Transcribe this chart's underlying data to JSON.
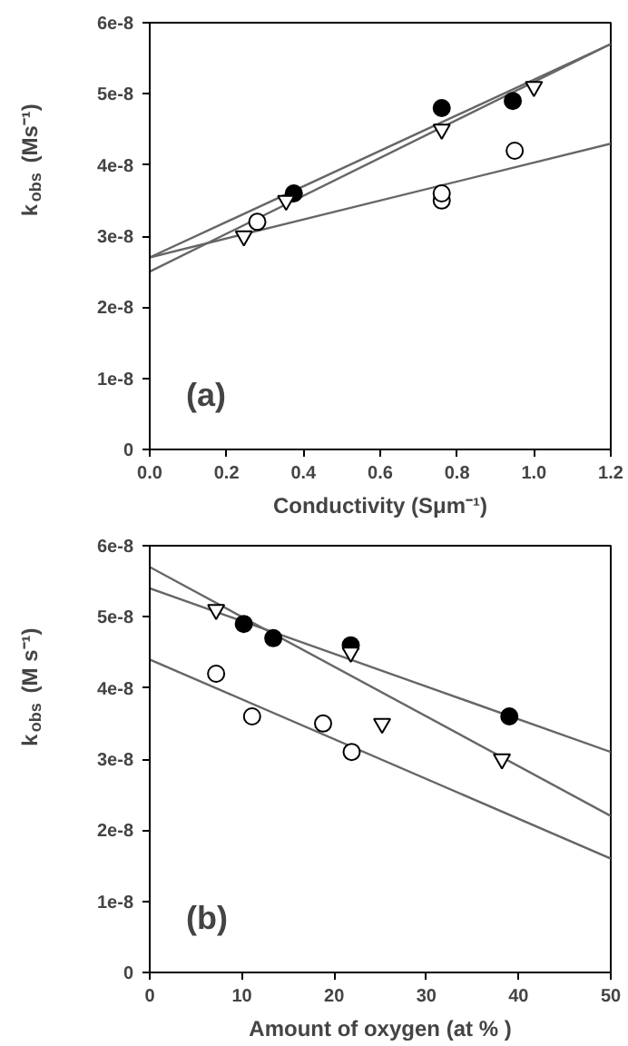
{
  "chart_data": [
    {
      "type": "scatter",
      "xlabel": "Conductivity (Sμm⁻¹)",
      "ylabel": "k$_{obs}$ (Ms⁻¹)",
      "annotations": [
        "(a)"
      ],
      "grid": false,
      "xlim": [
        0,
        1.2
      ],
      "ylim": [
        0,
        6e-08
      ],
      "xticks": [
        {
          "value": 0,
          "label": "0.0"
        },
        0.2,
        0.4,
        0.6,
        0.8,
        {
          "value": 1.0,
          "label": "1.0"
        },
        1.2
      ],
      "yticks": [
        0,
        {
          "value": 1e-08,
          "label": "1e-8"
        },
        {
          "value": 2e-08,
          "label": "2e-8"
        },
        {
          "value": 3e-08,
          "label": "3e-8"
        },
        {
          "value": 4e-08,
          "label": "4e-8"
        },
        {
          "value": 5e-08,
          "label": "5e-8"
        },
        {
          "value": 6e-08,
          "label": "6e-8"
        }
      ],
      "series": [
        {
          "type": "line",
          "color": "#666666",
          "marker": "none",
          "x": [
            0,
            1.2
          ],
          "values": [
            2.7e-08,
            5.7e-08
          ]
        },
        {
          "type": "line",
          "color": "#666666",
          "marker": "none",
          "x": [
            0,
            1.2
          ],
          "values": [
            2.5e-08,
            5.7e-08
          ]
        },
        {
          "type": "line",
          "color": "#666666",
          "marker": "none",
          "x": [
            0,
            1.2
          ],
          "values": [
            2.7e-08,
            4.3e-08
          ]
        },
        {
          "color": "#000000",
          "marker": "circle",
          "x": [
            0.375,
            0.76,
            0.945
          ],
          "values": [
            3.6e-08,
            4.8e-08,
            4.9e-08
          ]
        },
        {
          "color": "#ffffff",
          "marker": "triangle",
          "x": [
            0.245,
            0.355,
            0.76,
            1.0
          ],
          "values": [
            3e-08,
            3.5e-08,
            4.5e-08,
            5.1e-08
          ]
        },
        {
          "color": "#ffffff",
          "marker": "circle",
          "x": [
            0.28,
            0.76,
            0.76,
            0.95
          ],
          "values": [
            3.2e-08,
            3.5e-08,
            3.6e-08,
            4.2e-08
          ]
        }
      ]
    },
    {
      "type": "scatter",
      "xlabel": "Amount of oxygen (at % )",
      "ylabel": "k$_{obs}$ (M s⁻¹)",
      "annotations": [
        "(b)"
      ],
      "grid": false,
      "xlim": [
        0,
        50
      ],
      "ylim": [
        0,
        6e-08
      ],
      "xticks": [
        0,
        10,
        20,
        30,
        40,
        50
      ],
      "yticks": [
        0,
        {
          "value": 1e-08,
          "label": "1e-8"
        },
        {
          "value": 2e-08,
          "label": "2e-8"
        },
        {
          "value": 3e-08,
          "label": "3e-8"
        },
        {
          "value": 4e-08,
          "label": "4e-8"
        },
        {
          "value": 5e-08,
          "label": "5e-8"
        },
        {
          "value": 6e-08,
          "label": "6e-8"
        }
      ],
      "series": [
        {
          "type": "line",
          "color": "#666666",
          "marker": "none",
          "x": [
            0,
            50
          ],
          "values": [
            5.4e-08,
            3.1e-08
          ]
        },
        {
          "type": "line",
          "color": "#666666",
          "marker": "none",
          "x": [
            0,
            50
          ],
          "values": [
            5.7e-08,
            2.2e-08
          ]
        },
        {
          "type": "line",
          "color": "#666666",
          "marker": "none",
          "x": [
            0,
            50
          ],
          "values": [
            4.4e-08,
            1.6e-08
          ]
        },
        {
          "color": "#000000",
          "marker": "circle",
          "x": [
            10.2,
            13.4,
            21.8,
            39
          ],
          "values": [
            4.9e-08,
            4.7e-08,
            4.6e-08,
            3.6e-08
          ]
        },
        {
          "color": "#ffffff",
          "marker": "triangle",
          "x": [
            7.2,
            21.8,
            25.2,
            38.2
          ],
          "values": [
            5.1e-08,
            4.5e-08,
            3.5e-08,
            3e-08
          ]
        },
        {
          "color": "#ffffff",
          "marker": "circle",
          "x": [
            7.2,
            11.1,
            18.8,
            21.9
          ],
          "values": [
            4.2e-08,
            3.6e-08,
            3.5e-08,
            3.1e-08
          ]
        }
      ]
    }
  ]
}
